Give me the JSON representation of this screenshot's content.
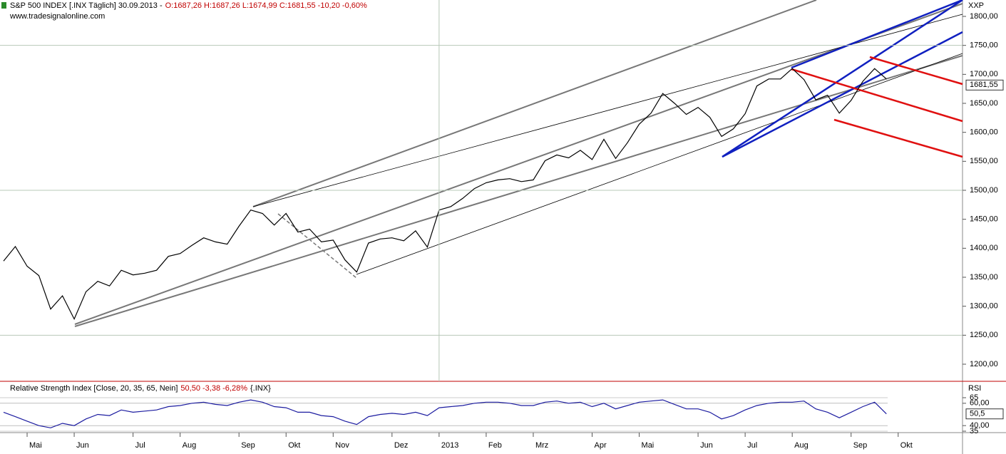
{
  "chart_data": [
    {
      "type": "line",
      "title": "S&P 500 INDEX [.INX  Täglich] 30.09.2013 -",
      "quote": "O:1687,26 H:1687,26 L:1674,99 C:1681,55 -10,20 -0,60%",
      "source": "www.tradesignalonline.com",
      "axis_label": "XXP",
      "categories": [
        null,
        null,
        "Mai",
        null,
        null,
        null,
        "Jun",
        null,
        null,
        null,
        null,
        "Jul",
        null,
        null,
        null,
        "Aug",
        null,
        null,
        null,
        null,
        "Sep",
        null,
        null,
        null,
        "Okt",
        null,
        null,
        null,
        "Nov",
        null,
        null,
        null,
        null,
        "Dez",
        null,
        null,
        null,
        "2013",
        null,
        null,
        null,
        "Feb",
        null,
        null,
        null,
        "Mrz",
        null,
        null,
        null,
        null,
        "Apr",
        null,
        null,
        null,
        "Mai",
        null,
        null,
        null,
        null,
        "Jun",
        null,
        null,
        null,
        "Jul",
        null,
        null,
        null,
        "Aug",
        null,
        null,
        null,
        null,
        "Sep",
        null,
        null,
        null,
        "Okt"
      ],
      "series": [
        {
          "name": "S&P 500 INDEX",
          "color": "#000000",
          "values": [
            1378,
            1403,
            1369,
            1353,
            1295,
            1318,
            1278,
            1325,
            1343,
            1335,
            1362,
            1354,
            1357,
            1362,
            1386,
            1391,
            1405,
            1418,
            1411,
            1407,
            1438,
            1466,
            1460,
            1440,
            1460,
            1428,
            1433,
            1411,
            1414,
            1380,
            1359,
            1409,
            1416,
            1418,
            1413,
            1430,
            1402,
            1466,
            1472,
            1486,
            1503,
            1513,
            1518,
            1520,
            1515,
            1518,
            1551,
            1561,
            1556,
            1569,
            1553,
            1588,
            1555,
            1582,
            1614,
            1633,
            1667,
            1650,
            1631,
            1643,
            1626,
            1593,
            1606,
            1632,
            1680,
            1692,
            1692,
            1710,
            1691,
            1656,
            1664,
            1633,
            1655,
            1688,
            1710,
            1692,
            null
          ]
        }
      ],
      "ylim": [
        1200,
        1800
      ],
      "yticks": [
        {
          "value": 1200,
          "label": "1200,00"
        },
        {
          "value": 1250,
          "label": "1250,00"
        },
        {
          "value": 1300,
          "label": "1300,00"
        },
        {
          "value": 1350,
          "label": "1350,00"
        },
        {
          "value": 1400,
          "label": "1400,00"
        },
        {
          "value": 1450,
          "label": "1450,00"
        },
        {
          "value": 1500,
          "label": "1500,00"
        },
        {
          "value": 1550,
          "label": "1550,00"
        },
        {
          "value": 1600,
          "label": "1600,00"
        },
        {
          "value": 1650,
          "label": "1650,00"
        },
        {
          "value": 1700,
          "label": "1700,00"
        },
        {
          "value": 1750,
          "label": "1750,00"
        },
        {
          "value": 1800,
          "label": "1800,00"
        }
      ],
      "last_value": {
        "value": 1681.55,
        "label": "1681,55"
      },
      "grid": true
    },
    {
      "type": "line",
      "title": "Relative Strength Index [Close, 20, 35, 65, Nein]",
      "quote": "50,50 -3,38 -6,28%",
      "symbol": "{.INX}",
      "axis_label": "RSI",
      "series": [
        {
          "name": "RSI",
          "color": "#1c1ca0",
          "values": [
            52,
            48,
            44,
            40,
            38,
            42,
            40,
            46,
            50,
            49,
            54,
            52,
            53,
            54,
            57,
            58,
            60,
            61,
            59,
            58,
            61,
            63,
            61,
            57,
            56,
            52,
            52,
            49,
            48,
            44,
            41,
            48,
            50,
            51,
            50,
            52,
            49,
            56,
            57,
            58,
            60,
            61,
            61,
            60,
            58,
            58,
            61,
            62,
            60,
            61,
            57,
            60,
            55,
            58,
            61,
            62,
            63,
            59,
            55,
            55,
            52,
            46,
            49,
            54,
            58,
            60,
            61,
            61,
            62,
            55,
            52,
            47,
            52,
            57,
            61,
            50.5,
            null
          ]
        }
      ],
      "ylim": [
        35,
        65
      ],
      "yticks": [
        65,
        {
          "value": 60,
          "label": "60,00"
        },
        {
          "value": 40,
          "label": "40,00"
        },
        35
      ],
      "last_value": {
        "value": 50.5,
        "label": "50,5"
      }
    }
  ]
}
